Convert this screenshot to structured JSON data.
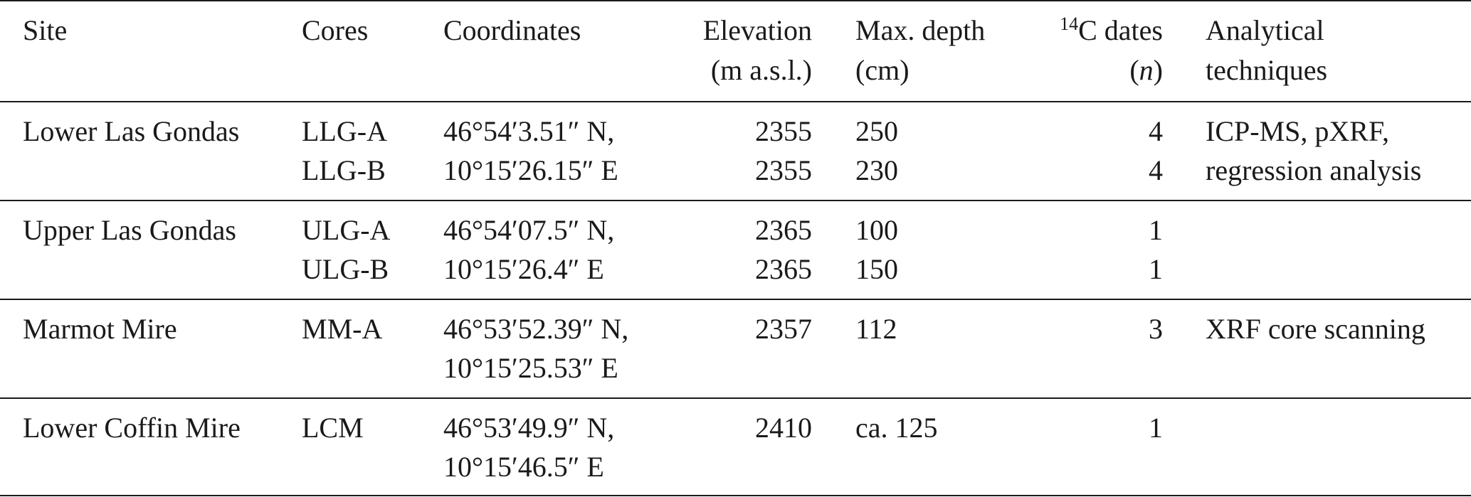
{
  "table": {
    "header": {
      "site": "Site",
      "cores": "Cores",
      "coordinates": "Coordinates",
      "elevation": [
        "Elevation",
        "(m a.s.l.)"
      ],
      "depth": [
        "Max. depth",
        "(cm)"
      ],
      "dates": [
        "14",
        "C dates",
        "(",
        "n",
        ")"
      ],
      "techniques": [
        "Analytical",
        "techniques"
      ]
    },
    "groups": [
      {
        "site": "Lower Las Gondas",
        "cores": [
          {
            "name": "LLG-A",
            "elevation": "2355",
            "depth": "250",
            "dates": "4"
          },
          {
            "name": "LLG-B",
            "elevation": "2355",
            "depth": "230",
            "dates": "4"
          }
        ],
        "coordinates": [
          "46°54′3.51″ N,",
          "10°15′26.15″ E"
        ],
        "techniques": [
          "ICP-MS, pXRF,",
          "regression analysis"
        ]
      },
      {
        "site": "Upper Las Gondas",
        "cores": [
          {
            "name": "ULG-A",
            "elevation": "2365",
            "depth": "100",
            "dates": "1"
          },
          {
            "name": "ULG-B",
            "elevation": "2365",
            "depth": "150",
            "dates": "1"
          }
        ],
        "coordinates": [
          "46°54′07.5″ N,",
          "10°15′26.4″ E"
        ],
        "techniques": []
      },
      {
        "site": "Marmot Mire",
        "cores": [
          {
            "name": "MM-A",
            "elevation": "2357",
            "depth": "112",
            "dates": "3"
          }
        ],
        "coordinates": [
          "46°53′52.39″ N,",
          "10°15′25.53″ E"
        ],
        "techniques": [
          "XRF core scanning"
        ]
      },
      {
        "site": "Lower Coffin Mire",
        "cores": [
          {
            "name": "LCM",
            "elevation": "2410",
            "depth": "ca. 125",
            "dates": "1"
          }
        ],
        "coordinates": [
          "46°53′49.9″ N,",
          "10°15′46.5″ E"
        ],
        "techniques": []
      }
    ]
  }
}
